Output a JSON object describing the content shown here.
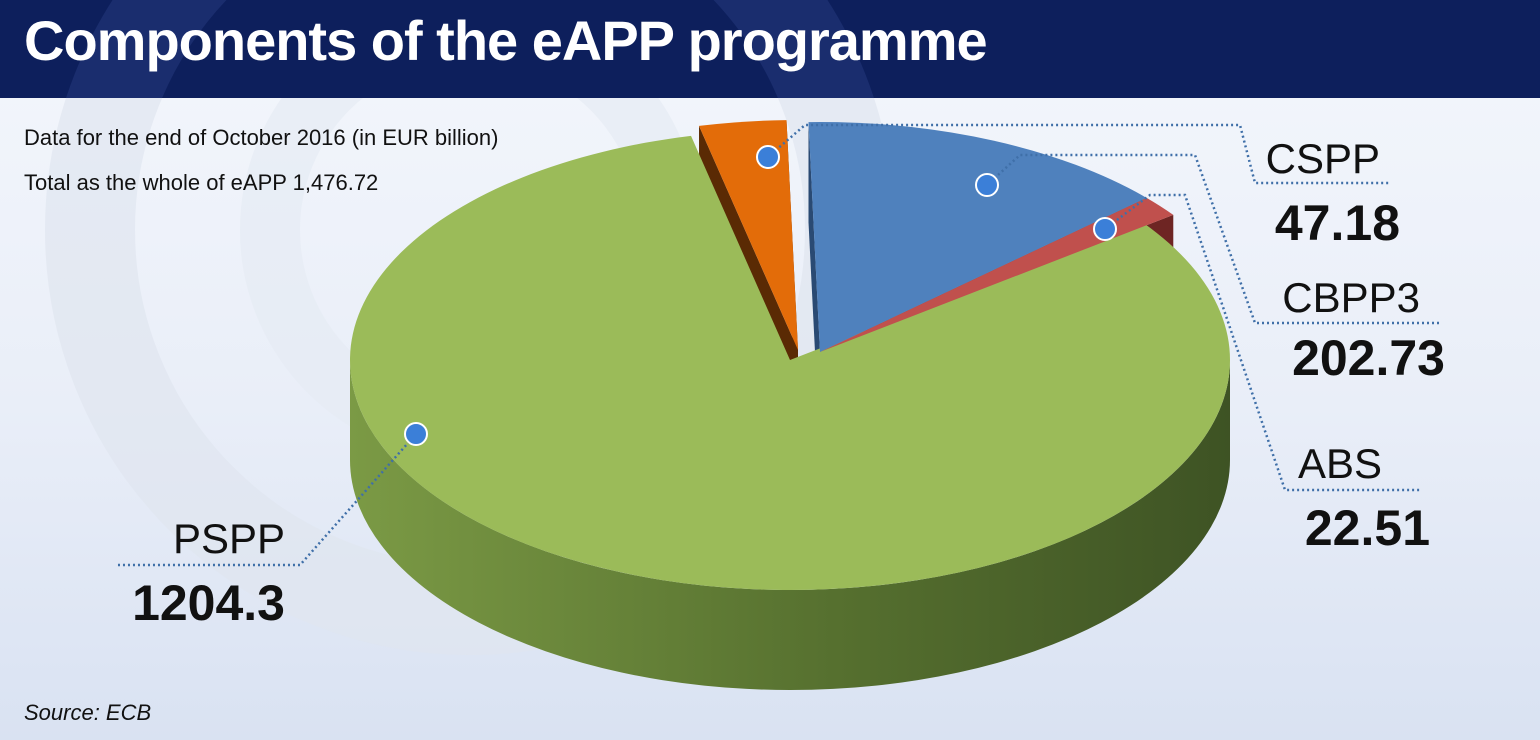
{
  "header": {
    "title": "Components of the eAPP programme"
  },
  "subtitle": {
    "line1": "Data for the end of October 2016 (in EUR billion)",
    "line2": "Total as the whole of eAPP 1,476.72"
  },
  "source": "Source: ECB",
  "colors": {
    "pspp": "#9bbb59",
    "cspp": "#e36c09",
    "cbpp3": "#4f81bd",
    "abs": "#c0504d",
    "marker": "#3b7fd8",
    "leader": "#3f6fa8"
  },
  "chart_data": {
    "type": "pie",
    "title": "Components of the eAPP programme",
    "unit": "EUR billion",
    "total": 1476.72,
    "slices": [
      {
        "name": "PSPP",
        "value": 1204.3,
        "label": "1204.3"
      },
      {
        "name": "CSPP",
        "value": 47.18,
        "label": "47.18"
      },
      {
        "name": "CBPP3",
        "value": 202.73,
        "label": "202.73"
      },
      {
        "name": "ABS",
        "value": 22.51,
        "label": "22.51"
      }
    ],
    "legend": "none"
  }
}
